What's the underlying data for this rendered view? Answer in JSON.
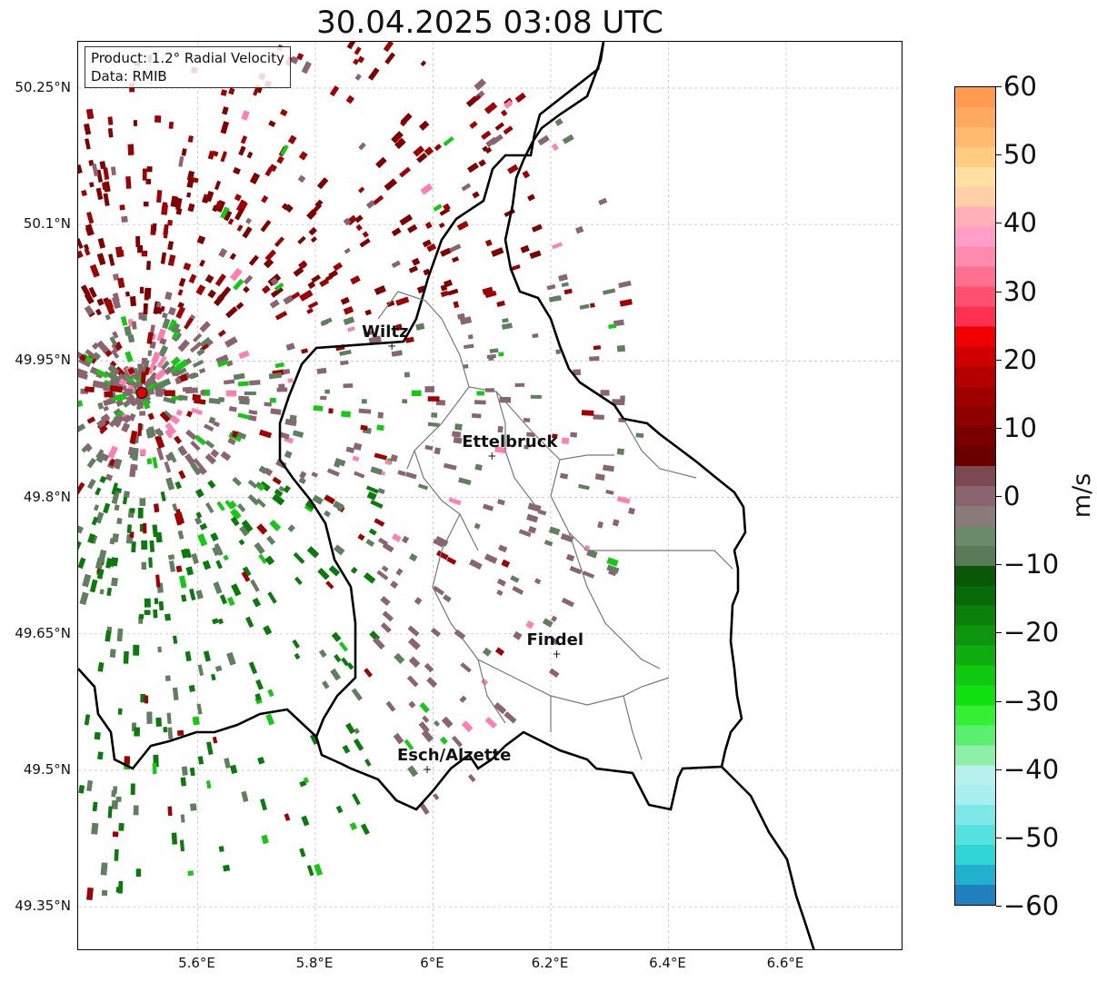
{
  "title": "30.04.2025 03:08 UTC",
  "info": {
    "product": "Product: 1.2° Radial Velocity",
    "data": "Data: RMIB"
  },
  "y_ticks": [
    "50.25°N",
    "50.1°N",
    "49.95°N",
    "49.8°N",
    "49.65°N",
    "49.5°N",
    "49.35°N"
  ],
  "x_ticks": [
    "5.6°E",
    "5.8°E",
    "6°E",
    "6.2°E",
    "6.4°E",
    "6.6°E"
  ],
  "cities": [
    {
      "name": "Wiltz",
      "lon": 5.93,
      "lat": 49.965
    },
    {
      "name": "Ettelbruck",
      "lon": 6.1,
      "lat": 49.845
    },
    {
      "name": "Findel",
      "lon": 6.21,
      "lat": 49.627
    },
    {
      "name": "Esch/Alzette",
      "lon": 5.99,
      "lat": 49.5
    }
  ],
  "radar_site": {
    "name": "radar",
    "lon": 5.505,
    "lat": 49.915
  },
  "colorbar": {
    "label": "m/s",
    "min": -60,
    "max": 60,
    "ticks": [
      "60",
      "50",
      "40",
      "30",
      "20",
      "10",
      "0",
      "−10",
      "−20",
      "−30",
      "−40",
      "−50",
      "−60"
    ],
    "colors": [
      "#1f7fbf",
      "#22b0cf",
      "#2fd6d6",
      "#56e0e0",
      "#7ee8e8",
      "#a8efef",
      "#b8f0ee",
      "#8ef0a8",
      "#5cee6e",
      "#33f033",
      "#10e010",
      "#10c810",
      "#0fae0f",
      "#0d960d",
      "#0b800b",
      "#096a09",
      "#085808",
      "#5a7a5a",
      "#6a8a6a",
      "#8a7a7a",
      "#8a6570",
      "#7a4a50",
      "#6a0000",
      "#7a0000",
      "#8f0000",
      "#a00000",
      "#b50000",
      "#d00000",
      "#f00000",
      "#ff3050",
      "#ff5070",
      "#ff7090",
      "#ff8ab0",
      "#ff9fc8",
      "#ffb0b8",
      "#ffd0a8",
      "#ffe0a0",
      "#ffcc80",
      "#ffba70",
      "#ffa860",
      "#ff9a50"
    ]
  },
  "legend_colors": {
    "outbound_strong": "#800000",
    "outbound": "#a00000",
    "near_zero_pos": "#8a6570",
    "near_zero_neg": "#5f7f5f",
    "inbound": "#0a7a0a",
    "inbound_bright": "#14c814",
    "pink": "#ff80b0"
  }
}
